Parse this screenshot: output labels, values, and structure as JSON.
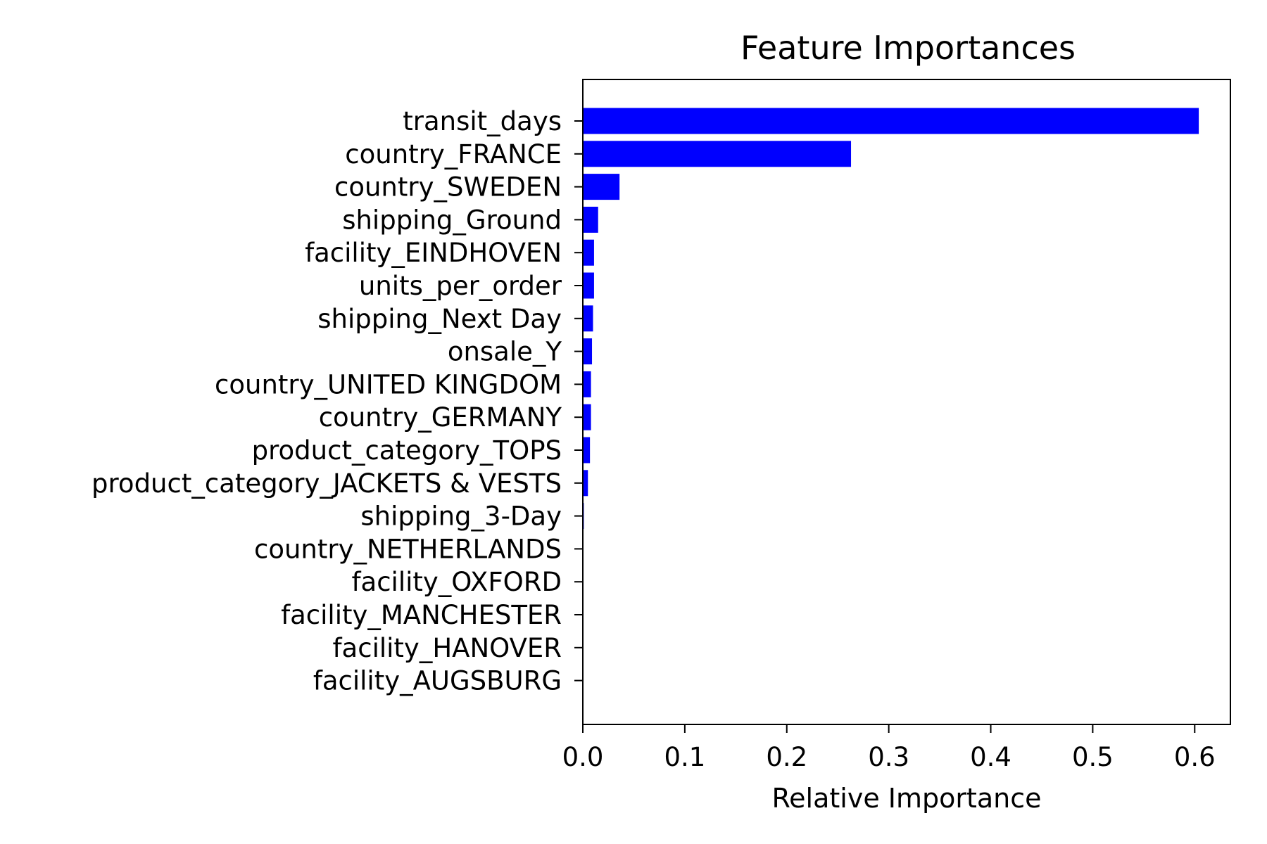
{
  "chart_data": {
    "type": "bar",
    "orientation": "horizontal",
    "title": "Feature Importances",
    "xlabel": "Relative Importance",
    "ylabel": "",
    "xlim": [
      0,
      0.635
    ],
    "xticks": [
      0.0,
      0.1,
      0.2,
      0.3,
      0.4,
      0.5,
      0.6
    ],
    "xtick_labels": [
      "0.0",
      "0.1",
      "0.2",
      "0.3",
      "0.4",
      "0.5",
      "0.6"
    ],
    "grid": false,
    "bar_color": "#0000ff",
    "categories": [
      "transit_days",
      "country_FRANCE",
      "country_SWEDEN",
      "shipping_Ground",
      "facility_EINDHOVEN",
      "units_per_order",
      "shipping_Next Day",
      "onsale_Y",
      "country_UNITED KINGDOM",
      "country_GERMANY",
      "product_category_TOPS",
      "product_category_JACKETS & VESTS",
      "shipping_3-Day",
      "country_NETHERLANDS",
      "facility_OXFORD",
      "facility_MANCHESTER",
      "facility_HANOVER",
      "facility_AUGSBURG"
    ],
    "values": [
      0.604,
      0.263,
      0.036,
      0.015,
      0.011,
      0.011,
      0.01,
      0.009,
      0.008,
      0.008,
      0.007,
      0.005,
      0.001,
      0.0,
      0.0,
      0.0,
      0.0,
      0.0
    ]
  }
}
